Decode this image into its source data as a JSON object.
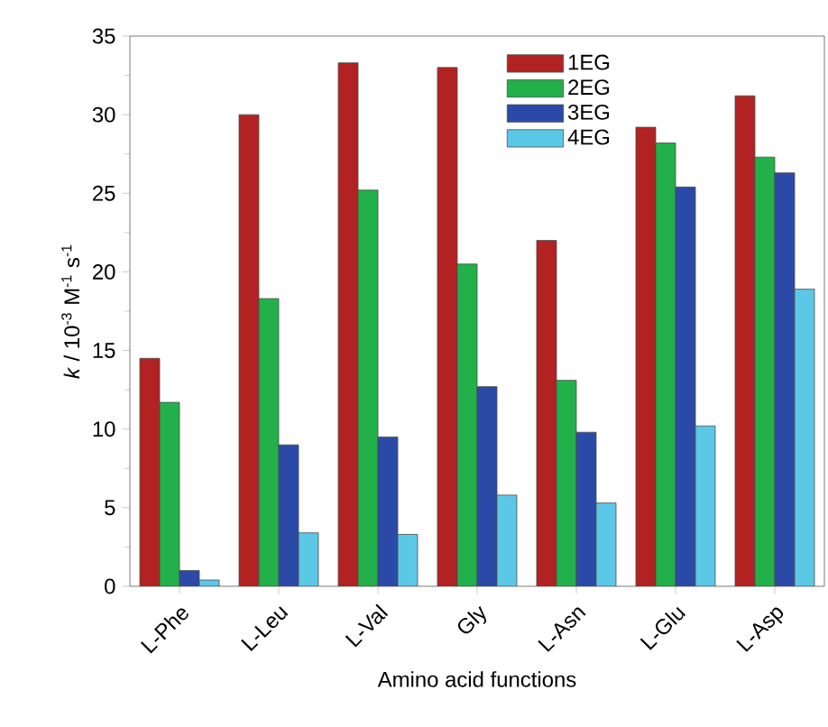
{
  "chart_data": {
    "type": "bar",
    "xlabel": "Amino acid functions",
    "ylabel": "*k* / 10$^{-3}$ M$^{-1}$ s$^{-1}$",
    "categories": [
      "L-Phe",
      "L-Leu",
      "L-Val",
      "Gly",
      "L-Asn",
      "L-Glu",
      "L-Asp"
    ],
    "series": [
      {
        "name": "1EG",
        "color": "#b22222",
        "values": [
          14.5,
          30.0,
          33.3,
          33.0,
          22.0,
          29.2,
          31.2
        ]
      },
      {
        "name": "2EG",
        "color": "#22b04a",
        "values": [
          11.7,
          18.3,
          25.2,
          20.5,
          13.1,
          28.2,
          27.3
        ]
      },
      {
        "name": "3EG",
        "color": "#2b4aa8",
        "values": [
          1.0,
          9.0,
          9.5,
          12.7,
          9.8,
          25.4,
          26.3
        ]
      },
      {
        "name": "4EG",
        "color": "#5bc8e8",
        "values": [
          0.4,
          3.4,
          3.3,
          5.8,
          5.3,
          10.2,
          18.9
        ]
      }
    ],
    "ylim": [
      0,
      35
    ],
    "yticks": [
      0,
      5,
      10,
      15,
      20,
      25,
      30,
      35
    ],
    "legend": "top",
    "grid": false
  }
}
